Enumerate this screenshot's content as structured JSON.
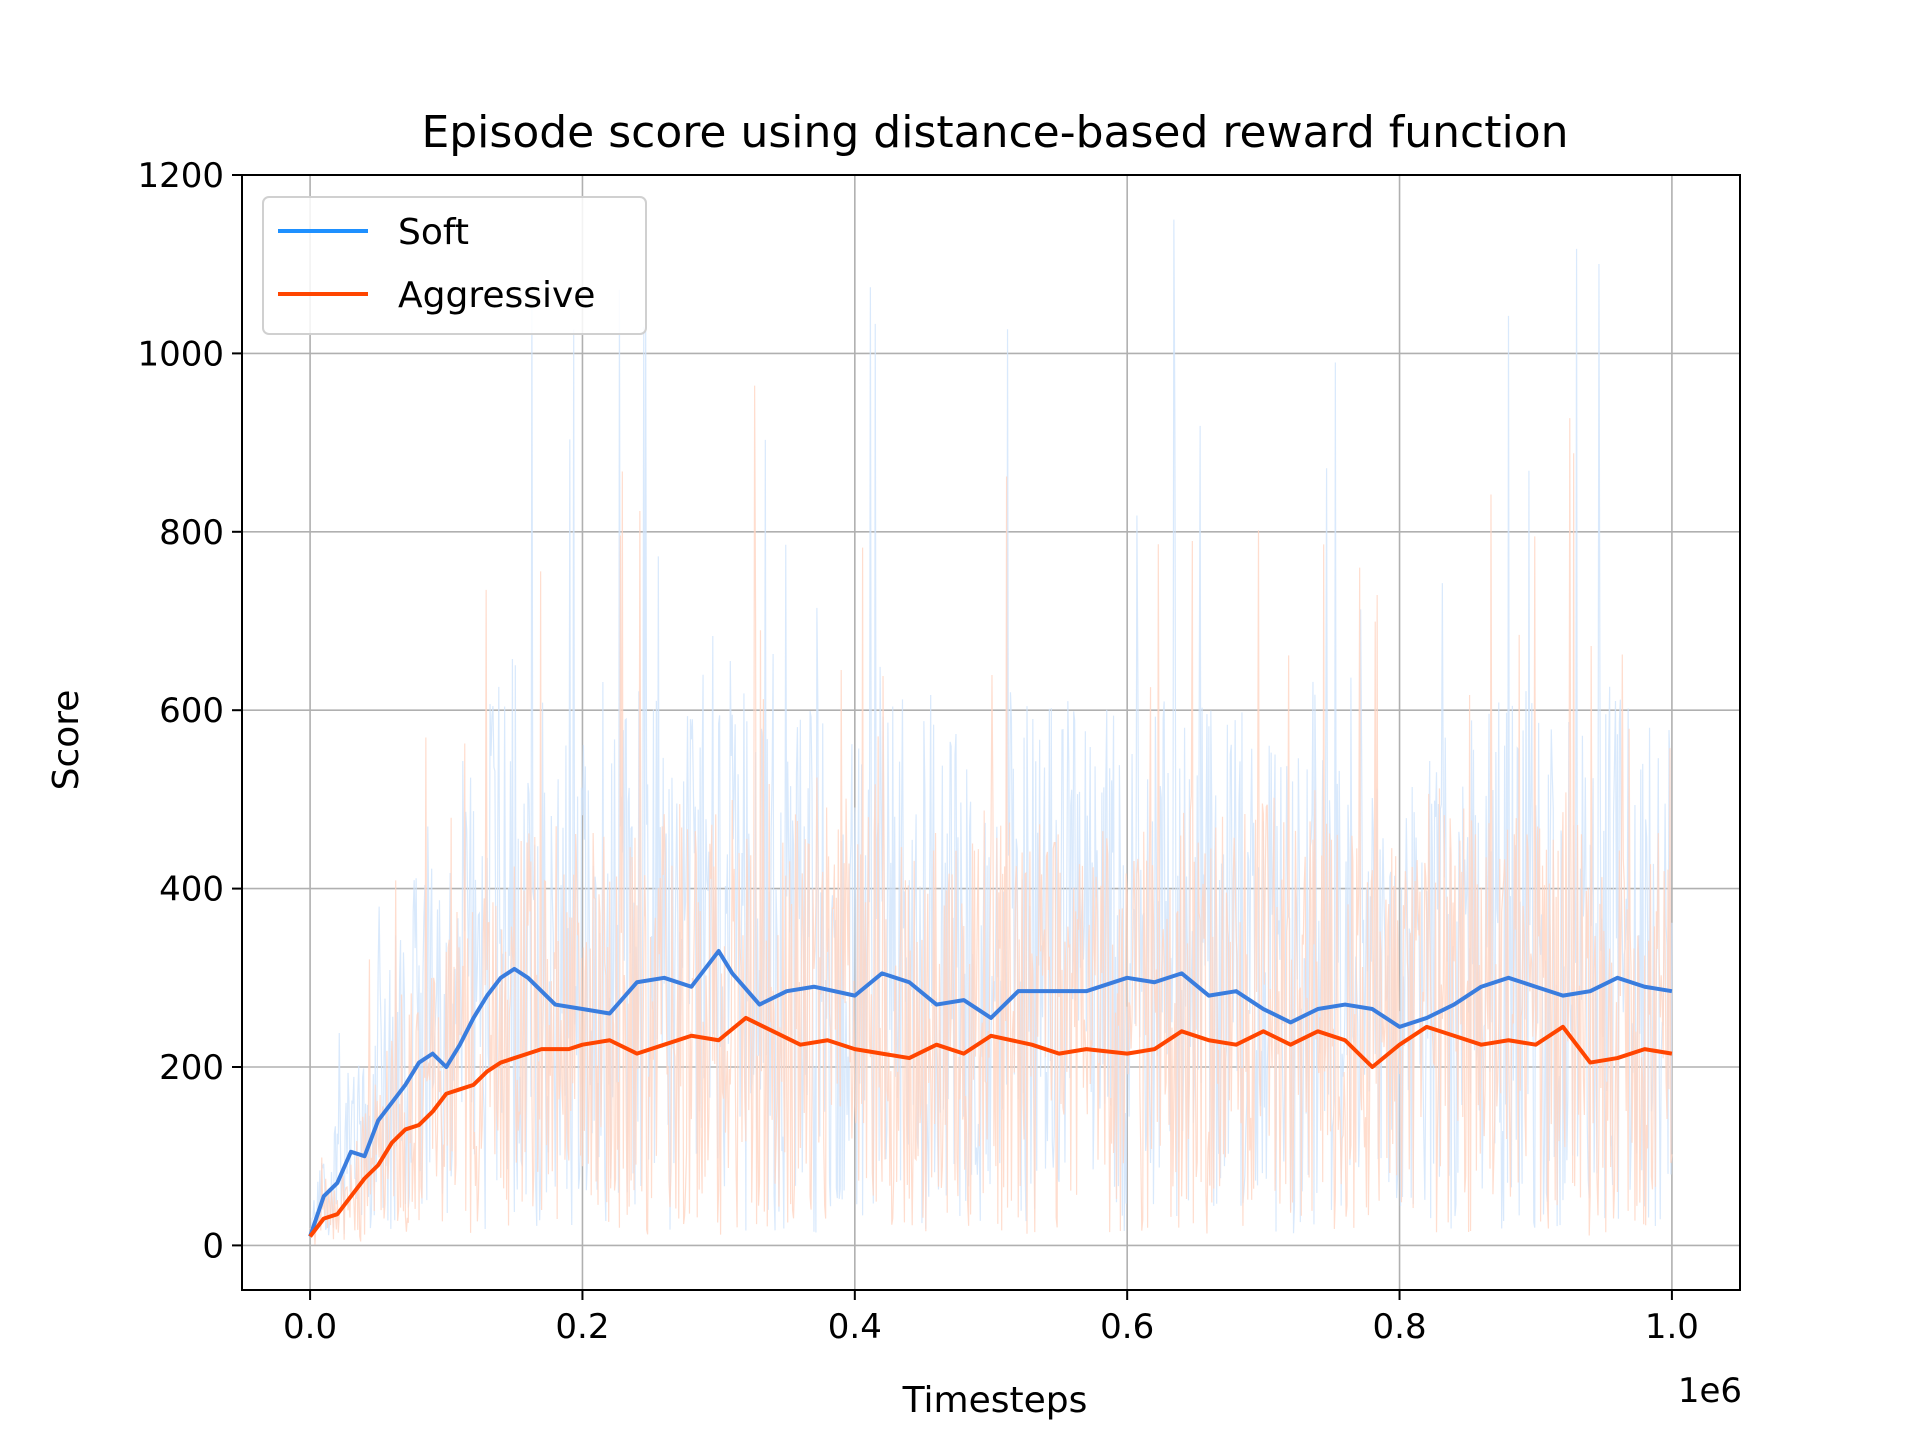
{
  "chart_data": {
    "type": "line",
    "title": "Episode score using distance-based reward function",
    "xlabel": "Timesteps",
    "ylabel": "Score",
    "x_offset_label": "1e6",
    "xlim": [
      -0.05,
      1.05
    ],
    "ylim": [
      -50,
      1200
    ],
    "xticks": [
      0.0,
      0.2,
      0.4,
      0.6,
      0.8,
      1.0
    ],
    "xtick_labels": [
      "0.0",
      "0.2",
      "0.4",
      "0.6",
      "0.8",
      "1.0"
    ],
    "yticks": [
      0,
      200,
      400,
      600,
      800,
      1000,
      1200
    ],
    "ytick_labels": [
      "0",
      "200",
      "400",
      "600",
      "800",
      "1000",
      "1200"
    ],
    "grid": true,
    "legend_position": "upper-left",
    "series": [
      {
        "name": "Soft",
        "color": "#3a7dde",
        "legend_color": "#1e90ff",
        "raw_color": "#cfe4fb",
        "x": [
          0.0,
          0.01,
          0.02,
          0.03,
          0.04,
          0.05,
          0.06,
          0.07,
          0.08,
          0.09,
          0.1,
          0.11,
          0.12,
          0.13,
          0.14,
          0.15,
          0.16,
          0.17,
          0.18,
          0.2,
          0.22,
          0.24,
          0.26,
          0.28,
          0.3,
          0.31,
          0.33,
          0.35,
          0.37,
          0.4,
          0.42,
          0.44,
          0.46,
          0.48,
          0.5,
          0.52,
          0.55,
          0.57,
          0.6,
          0.62,
          0.64,
          0.66,
          0.68,
          0.7,
          0.72,
          0.74,
          0.76,
          0.78,
          0.8,
          0.82,
          0.84,
          0.86,
          0.88,
          0.9,
          0.92,
          0.94,
          0.96,
          0.98,
          1.0
        ],
        "y": [
          10,
          55,
          70,
          105,
          100,
          140,
          160,
          180,
          205,
          215,
          200,
          225,
          255,
          280,
          300,
          310,
          300,
          285,
          270,
          265,
          260,
          295,
          300,
          290,
          330,
          305,
          270,
          285,
          290,
          280,
          305,
          295,
          270,
          275,
          255,
          285,
          285,
          285,
          300,
          295,
          305,
          280,
          285,
          265,
          250,
          265,
          270,
          265,
          245,
          255,
          270,
          290,
          300,
          290,
          280,
          285,
          300,
          290,
          285
        ]
      },
      {
        "name": "Aggressive",
        "color": "#ff4500",
        "legend_color": "#ff4500",
        "raw_color": "#ffd5c2",
        "x": [
          0.0,
          0.01,
          0.02,
          0.03,
          0.04,
          0.05,
          0.06,
          0.07,
          0.08,
          0.09,
          0.1,
          0.11,
          0.12,
          0.13,
          0.14,
          0.15,
          0.17,
          0.19,
          0.2,
          0.22,
          0.24,
          0.26,
          0.28,
          0.3,
          0.32,
          0.34,
          0.36,
          0.38,
          0.4,
          0.42,
          0.44,
          0.46,
          0.48,
          0.5,
          0.53,
          0.55,
          0.57,
          0.6,
          0.62,
          0.64,
          0.66,
          0.68,
          0.7,
          0.72,
          0.74,
          0.76,
          0.78,
          0.8,
          0.82,
          0.84,
          0.86,
          0.88,
          0.9,
          0.92,
          0.94,
          0.96,
          0.98,
          1.0
        ],
        "y": [
          10,
          30,
          35,
          55,
          75,
          90,
          115,
          130,
          135,
          150,
          170,
          175,
          180,
          195,
          205,
          210,
          220,
          220,
          225,
          230,
          215,
          225,
          235,
          230,
          255,
          240,
          225,
          230,
          220,
          215,
          210,
          225,
          215,
          235,
          225,
          215,
          220,
          215,
          220,
          240,
          230,
          225,
          240,
          225,
          240,
          230,
          200,
          225,
          245,
          235,
          225,
          230,
          225,
          245,
          205,
          210,
          220,
          215
        ]
      }
    ]
  }
}
